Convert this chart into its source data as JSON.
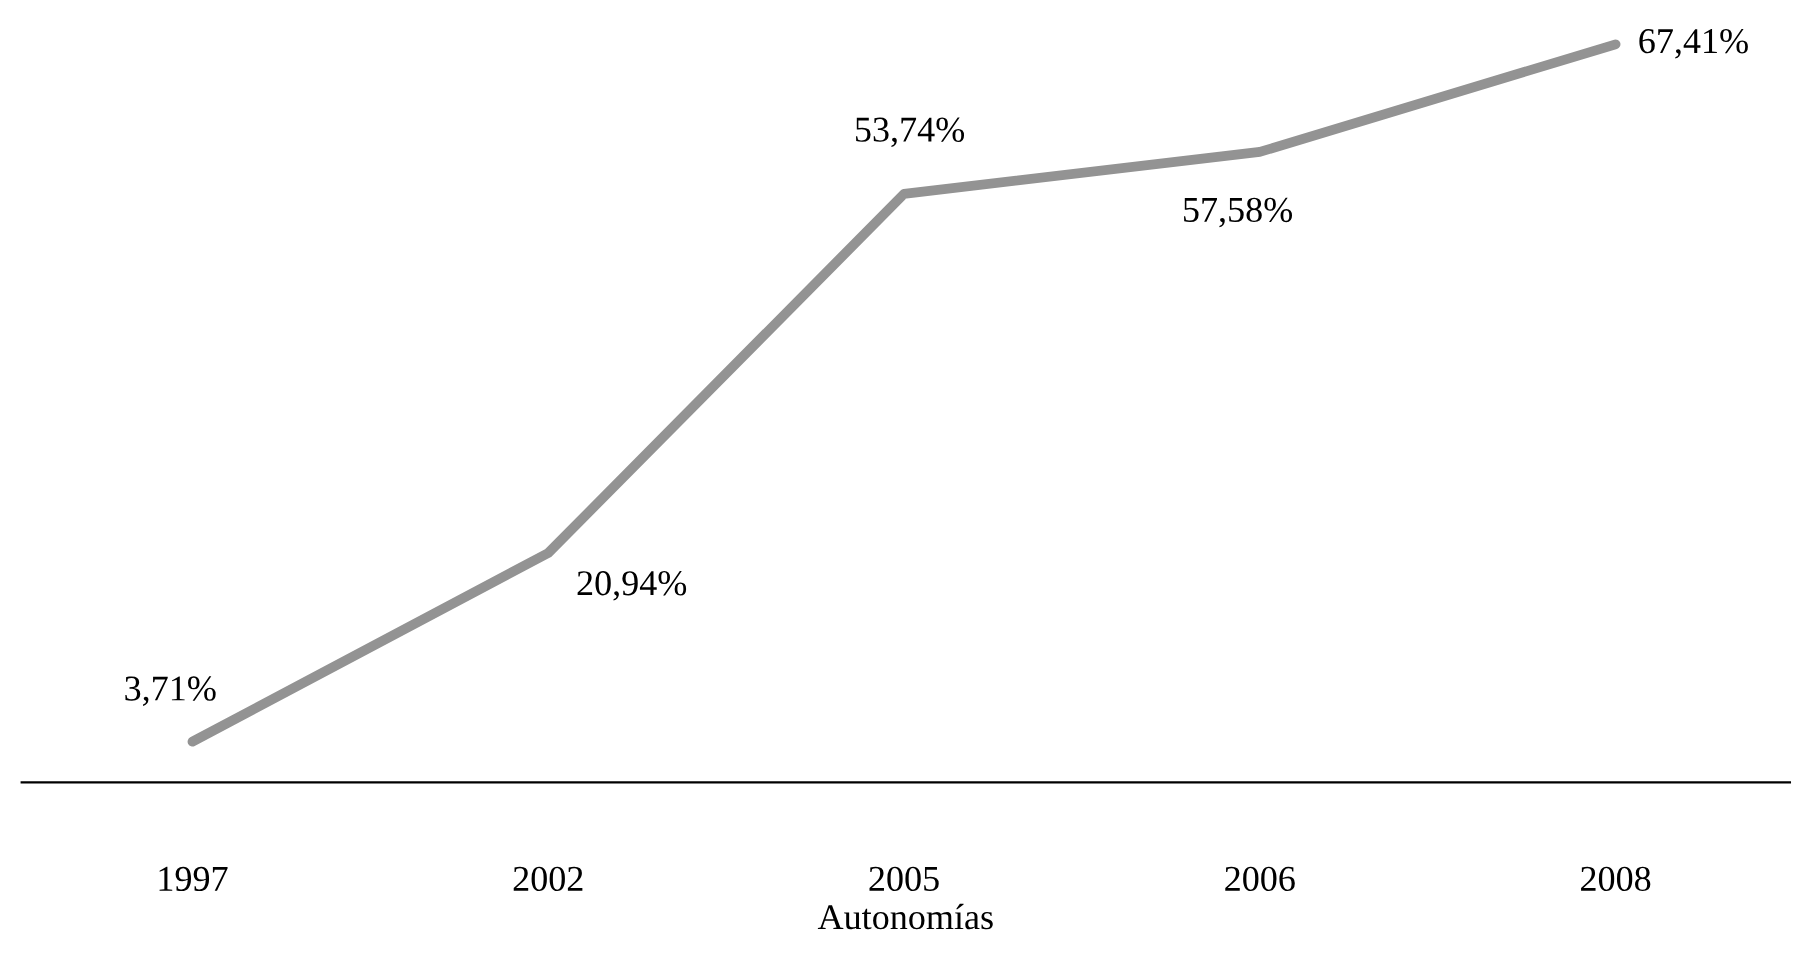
{
  "chart_data": {
    "type": "line",
    "xlabel": "Autonomías",
    "categories": [
      "1997",
      "2002",
      "2005",
      "2006",
      "2008"
    ],
    "values": [
      3.71,
      20.94,
      53.74,
      57.58,
      67.41
    ],
    "value_labels": [
      "3,71%",
      "20,94%",
      "53,74%",
      "57,58%",
      "67,41%"
    ],
    "color": "#939393",
    "grid": false,
    "legend": false,
    "marker": "none",
    "line_style": "solid",
    "tick_labels": "x"
  }
}
